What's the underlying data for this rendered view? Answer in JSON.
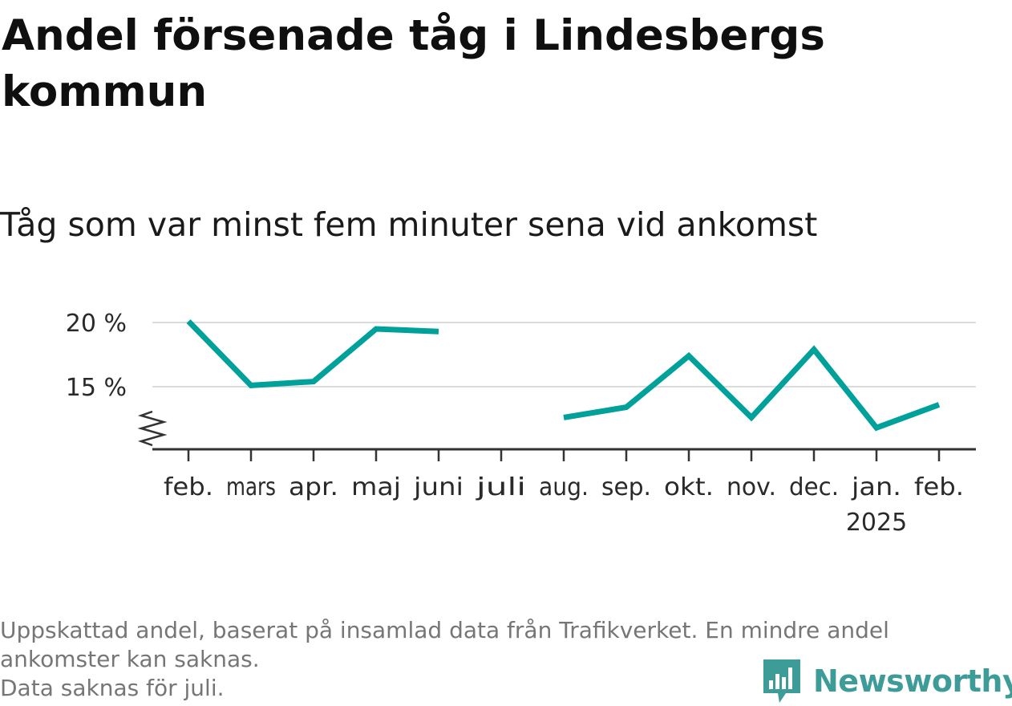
{
  "title": "Andel försenade tåg i Lindesbergs kommun",
  "subtitle": "Tåg som var minst fem minuter sena vid ankomst",
  "footnote": {
    "line1": "Uppskattad andel, baserat på insamlad data från Trafikverket. En mindre andel",
    "line2": "ankomster kan saknas.",
    "line3": "Data saknas för juli."
  },
  "brand": {
    "name": "Newsworthy",
    "color": "#3e9c98",
    "icon": "bar-chart-speech-bubble-icon"
  },
  "chart_data": {
    "type": "line",
    "categories": [
      "feb.",
      "mars",
      "apr.",
      "maj",
      "juni",
      "juli",
      "aug.",
      "sep.",
      "okt.",
      "nov.",
      "dec.",
      "jan.",
      "feb."
    ],
    "year_label": {
      "category_index": 11,
      "text": "2025"
    },
    "series": [
      {
        "values": [
          20.1,
          15.1,
          15.4,
          19.5,
          19.3,
          null,
          12.6,
          13.4,
          17.4,
          12.6,
          17.9,
          11.8,
          13.6
        ],
        "color": "#00a19a"
      }
    ],
    "yticks": [
      15,
      20
    ],
    "ytick_labels": [
      "15 %",
      "20 %"
    ],
    "ylim": [
      10,
      20
    ],
    "axis_break": true,
    "grid": true,
    "grid_color": "#dcdcdc",
    "axis_color": "#333333"
  }
}
